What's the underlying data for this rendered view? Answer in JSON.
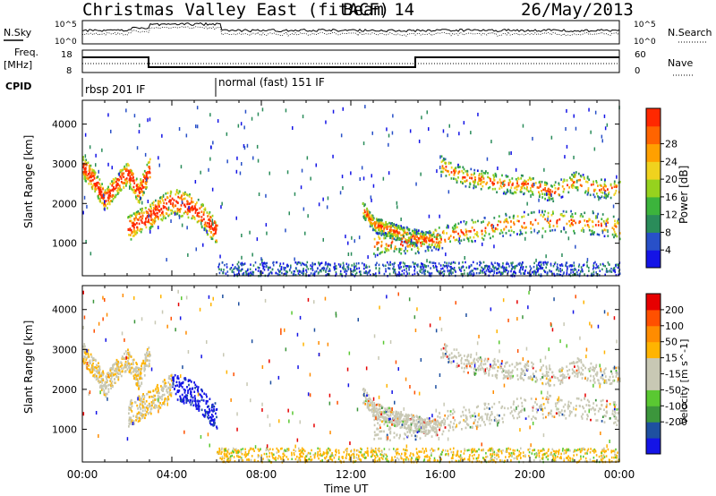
{
  "header": {
    "title": "Christmas Valley East (fitACF)",
    "beam": "Beam 14",
    "date": "26/May/2013"
  },
  "summary": {
    "nsky_label": "N.Sky",
    "nsearch_label": "N.Search",
    "noise_ticks_top": "10^5",
    "noise_ticks_bottom": "10^0",
    "freq_label": "Freq.",
    "freq_unit": "[MHz]",
    "freq_ticks": [
      "18",
      "8"
    ],
    "nave_label": "Nave",
    "nave_ticks": [
      "60",
      "0"
    ],
    "cpid_label": "CPID",
    "cpid_segments": [
      {
        "label": "rbsp 201 IF",
        "start_h": 0,
        "end_h": 6
      },
      {
        "label": "normal (fast) 151 IF",
        "start_h": 6,
        "end_h": 24
      }
    ]
  },
  "colors": {
    "power": [
      "#1414e6",
      "#2850c8",
      "#2a8c5a",
      "#3cb43c",
      "#96d21e",
      "#f0d21e",
      "#ffa000",
      "#ff6400",
      "#ff2800"
    ],
    "velocity": [
      "#e60000",
      "#ff5000",
      "#ff8c00",
      "#ffb400",
      "#c8c8b4",
      "#c8c8b4",
      "#5ac832",
      "#3c963c",
      "#1e50a0",
      "#1414e6"
    ]
  },
  "chart_data": [
    {
      "type": "heatmap",
      "name": "power",
      "ylabel": "Slant Range [km]",
      "yticks": [
        1000,
        2000,
        3000,
        4000
      ],
      "ylim": [
        180,
        4600
      ],
      "xlim": [
        0,
        24
      ],
      "colorbar_label": "Power [dB]",
      "colorbar_ticks": [
        4,
        8,
        12,
        16,
        20,
        24,
        28
      ],
      "bands": [
        {
          "x": [
            0,
            0.5,
            1,
            1.5,
            2,
            2.5,
            3
          ],
          "y": [
            2950,
            2600,
            2100,
            2500,
            2800,
            2300,
            2900
          ],
          "width_km": 350
        },
        {
          "x": [
            2,
            3,
            4,
            5,
            6
          ],
          "y": [
            1400,
            1700,
            2100,
            1900,
            1300
          ],
          "width_km": 400
        },
        {
          "x": [
            12.5,
            13,
            14,
            15,
            16
          ],
          "y": [
            1900,
            1500,
            1300,
            1150,
            1050
          ],
          "width_km": 250
        },
        {
          "x": [
            13,
            15,
            17,
            19,
            21,
            23,
            24
          ],
          "y": [
            1000,
            1050,
            1300,
            1500,
            1600,
            1500,
            1400
          ],
          "width_km": 350
        },
        {
          "x": [
            16,
            17,
            18,
            19,
            20,
            21,
            22,
            23,
            24
          ],
          "y": [
            3000,
            2700,
            2600,
            2500,
            2500,
            2300,
            2600,
            2400,
            2400
          ],
          "width_km": 300
        }
      ]
    },
    {
      "type": "heatmap",
      "name": "velocity",
      "ylabel": "Slant Range [km]",
      "yticks": [
        1000,
        2000,
        3000,
        4000
      ],
      "ylim": [
        180,
        4600
      ],
      "xlabel": "Time UT",
      "xticks": [
        "00:00",
        "04:00",
        "08:00",
        "12:00",
        "16:00",
        "20:00",
        "00:00"
      ],
      "xlim": [
        0,
        24
      ],
      "colorbar_label": "Velocity [m s^-1]",
      "colorbar_ticks": [
        200,
        100,
        50,
        15,
        -15,
        -50,
        -100,
        -200
      ]
    }
  ]
}
